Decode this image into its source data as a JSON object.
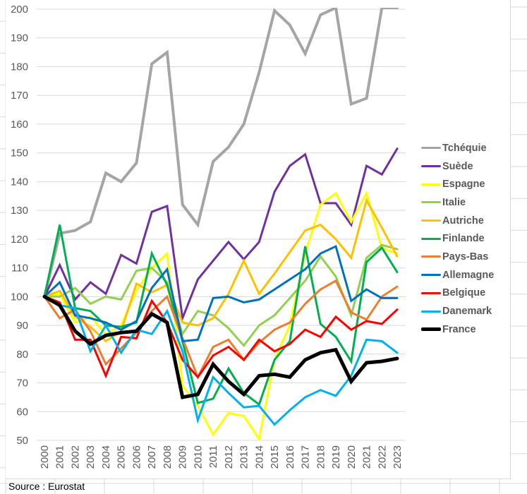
{
  "chart_data": {
    "type": "line",
    "title": "",
    "xlabel": "",
    "ylabel": "",
    "ylim": [
      50,
      200
    ],
    "yticks": [
      50,
      60,
      70,
      80,
      90,
      100,
      110,
      120,
      130,
      140,
      150,
      160,
      170,
      180,
      190,
      200
    ],
    "grid": true,
    "legend_position": "right",
    "categories": [
      "2000",
      "2001",
      "2002",
      "2003",
      "2004",
      "2005",
      "2006",
      "2007",
      "2008",
      "2009",
      "2010",
      "2011",
      "2012",
      "2013",
      "2014",
      "2015",
      "2016",
      "2017",
      "2018",
      "2019",
      "2020",
      "2021",
      "2022",
      "2023"
    ],
    "series": [
      {
        "name": "Tchéquie",
        "color": "#a5a5a5",
        "width": 4,
        "values": [
          100,
          122,
          123,
          126,
          143,
          140,
          146.5,
          181,
          185,
          132,
          125,
          147,
          152,
          160,
          178,
          199.5,
          194.5,
          184.5,
          198,
          200.5,
          167,
          169,
          200.5,
          200.5
        ]
      },
      {
        "name": "Suède",
        "color": "#7030a0",
        "width": 3,
        "values": [
          100,
          111,
          99,
          105,
          101,
          114.5,
          111.5,
          129.5,
          131.5,
          92.5,
          106,
          112.5,
          119,
          113,
          119,
          136.5,
          145.5,
          149.5,
          132.5,
          132.5,
          125,
          145.5,
          142.5,
          151.5
        ]
      },
      {
        "name": "Espagne",
        "color": "#ffff00",
        "width": 3,
        "values": [
          100,
          101,
          91,
          93,
          87,
          90,
          102,
          110,
          115,
          69,
          62,
          52,
          59.5,
          58.5,
          50.5,
          78,
          90,
          115,
          132,
          136,
          126,
          136,
          117,
          115
        ]
      },
      {
        "name": "Italie",
        "color": "#92d050",
        "width": 3,
        "values": [
          100,
          100,
          103,
          97.5,
          100,
          99,
          109,
          110,
          105,
          87,
          95,
          93.5,
          89,
          83,
          90,
          93.5,
          99.5,
          105.5,
          114,
          107,
          93.5,
          113.5,
          118,
          116.5
        ]
      },
      {
        "name": "Autriche",
        "color": "#ffc000",
        "width": 3,
        "values": [
          100,
          102,
          93,
          89.5,
          84.5,
          88,
          104.5,
          101.5,
          104,
          91,
          90,
          92.5,
          101,
          112.5,
          101,
          108,
          115.5,
          123,
          125,
          120,
          113.5,
          133.5,
          124,
          114
        ]
      },
      {
        "name": "Finlande",
        "color": "#00b050",
        "width": 3,
        "values": [
          100,
          125,
          96,
          95,
          90,
          89.5,
          91,
          115,
          104,
          84.5,
          63,
          64.5,
          75,
          66.5,
          62.5,
          78,
          84.5,
          117.5,
          90.5,
          86,
          77.5,
          112,
          117,
          108.5
        ]
      },
      {
        "name": "Pays-Bas",
        "color": "#ed7d31",
        "width": 3,
        "values": [
          100,
          92.5,
          95.5,
          88,
          76.5,
          82,
          87.5,
          95,
          100,
          85.5,
          72,
          82.5,
          85,
          78,
          84,
          88.5,
          91,
          97.5,
          102.5,
          105.5,
          94.5,
          92,
          100,
          103.5
        ]
      },
      {
        "name": "Allemagne",
        "color": "#0070c0",
        "width": 3,
        "values": [
          100,
          105,
          93.5,
          92.5,
          91,
          88.5,
          91.5,
          103,
          109.5,
          84.5,
          85,
          99.5,
          100,
          98,
          99,
          102.5,
          106,
          109.5,
          115,
          117.5,
          98.5,
          102.5,
          99.5,
          99.5
        ]
      },
      {
        "name": "Belgique",
        "color": "#ff0000",
        "width": 3,
        "values": [
          100,
          98,
          85,
          85,
          72.5,
          86,
          85.5,
          98.5,
          91,
          78,
          72,
          79.5,
          82.5,
          78,
          85,
          81,
          83.5,
          88.5,
          86,
          93,
          88.5,
          91.5,
          90.5,
          95.5
        ]
      },
      {
        "name": "Danemark",
        "color": "#00b0f0",
        "width": 3,
        "values": [
          100,
          97,
          96,
          81,
          90,
          80.5,
          88.5,
          87,
          95,
          81,
          57,
          72,
          66.5,
          61.5,
          62,
          55.5,
          60.5,
          65,
          67.5,
          65.5,
          72.5,
          85,
          84.5,
          80.5
        ]
      },
      {
        "name": "France",
        "color": "#000000",
        "width": 5,
        "values": [
          100,
          97,
          88,
          83.5,
          86.5,
          87.5,
          88,
          94,
          91,
          65,
          66,
          76.5,
          70.5,
          66,
          72.5,
          73,
          72,
          78,
          80.5,
          81.5,
          70.5,
          77,
          77.5,
          78.5
        ]
      }
    ]
  },
  "source": "Source : Eurostat"
}
